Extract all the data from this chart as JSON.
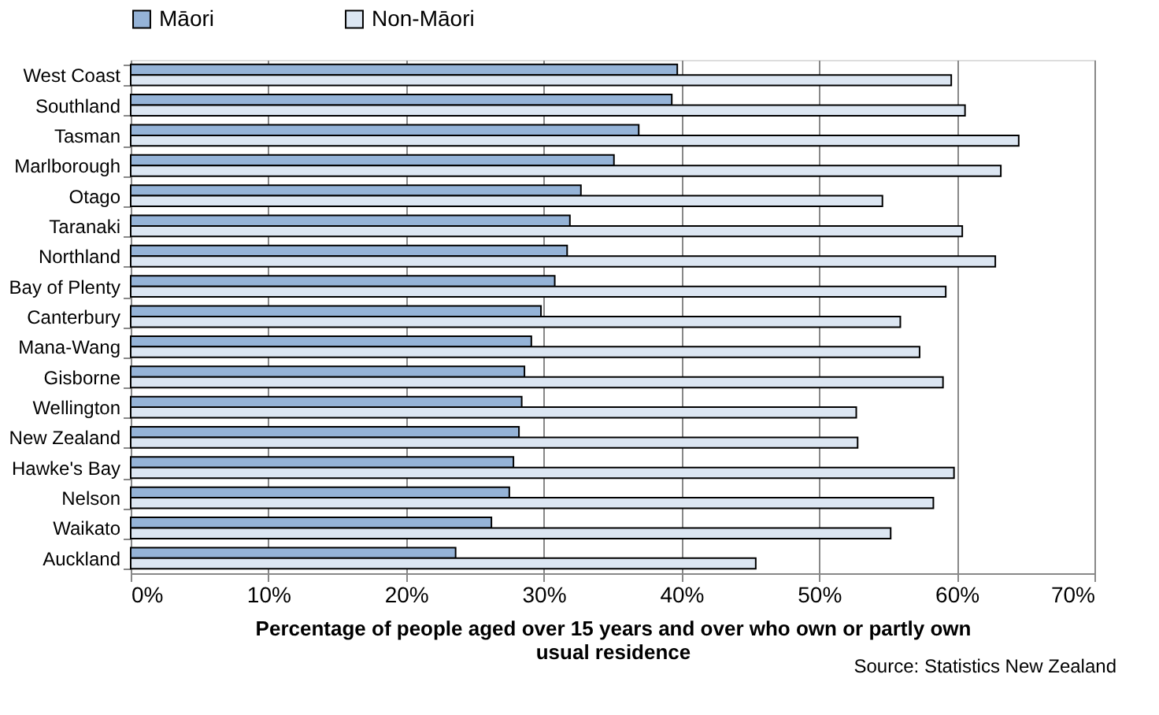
{
  "chart_data": {
    "type": "bar",
    "orientation": "horizontal",
    "xlabel": "Percentage of people aged over 15 years and over who own or partly own usual residence",
    "annotations": [
      "Source: Statistics New Zealand"
    ],
    "categories": [
      "West Coast",
      "Southland",
      "Tasman",
      "Marlborough",
      "Otago",
      "Taranaki",
      "Northland",
      "Bay of Plenty",
      "Canterbury",
      "Mana-Wang",
      "Gisborne",
      "Wellington",
      "New Zealand",
      "Hawke's Bay",
      "Nelson",
      "Waikato",
      "Auckland"
    ],
    "series": [
      {
        "name": "Māori",
        "color": "#95b3d7",
        "values": [
          39.7,
          39.3,
          36.9,
          35.1,
          32.7,
          31.9,
          31.7,
          30.8,
          29.8,
          29.1,
          28.6,
          28.4,
          28.2,
          27.8,
          27.5,
          26.2,
          23.6
        ]
      },
      {
        "name": "Non-Māori",
        "color": "#dce6f2",
        "values": [
          59.6,
          60.6,
          64.5,
          63.2,
          54.6,
          60.4,
          62.8,
          59.2,
          55.9,
          57.3,
          59.0,
          52.7,
          52.8,
          59.8,
          58.3,
          55.2,
          45.4
        ]
      }
    ],
    "xlim": [
      0,
      70
    ],
    "xticks": [
      {
        "value": 0,
        "label": "0%"
      },
      {
        "value": 10,
        "label": "10%"
      },
      {
        "value": 20,
        "label": "20%"
      },
      {
        "value": 30,
        "label": "30%"
      },
      {
        "value": 40,
        "label": "40%"
      },
      {
        "value": 50,
        "label": "50%"
      },
      {
        "value": 60,
        "label": "60%"
      },
      {
        "value": 70,
        "label": "70%"
      }
    ],
    "grid": "x",
    "legend": "top"
  }
}
